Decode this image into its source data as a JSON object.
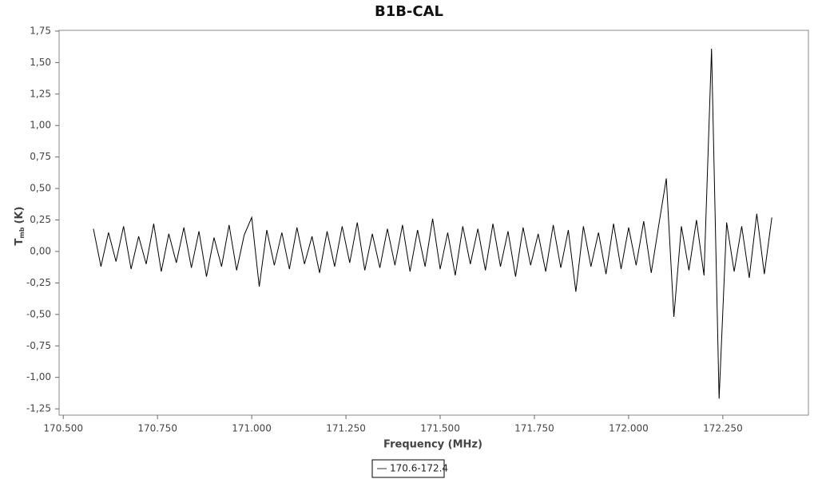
{
  "chart_data": {
    "type": "line",
    "title": "B1B-CAL",
    "x_label": "Frequency (MHz)",
    "y_label": "T",
    "y_label_sub": "mb",
    "y_label_unit": "(K)",
    "x": [
      170.58,
      170.6,
      170.62,
      170.64,
      170.66,
      170.68,
      170.7,
      170.72,
      170.74,
      170.76,
      170.78,
      170.8,
      170.82,
      170.84,
      170.86,
      170.88,
      170.9,
      170.92,
      170.94,
      170.96,
      170.98,
      171.0,
      171.02,
      171.04,
      171.06,
      171.08,
      171.1,
      171.12,
      171.14,
      171.16,
      171.18,
      171.2,
      171.22,
      171.24,
      171.26,
      171.28,
      171.3,
      171.32,
      171.34,
      171.36,
      171.38,
      171.4,
      171.42,
      171.44,
      171.46,
      171.48,
      171.5,
      171.52,
      171.54,
      171.56,
      171.58,
      171.6,
      171.62,
      171.64,
      171.66,
      171.68,
      171.7,
      171.72,
      171.74,
      171.76,
      171.78,
      171.8,
      171.82,
      171.84,
      171.86,
      171.88,
      171.9,
      171.92,
      171.94,
      171.96,
      171.98,
      172.0,
      172.02,
      172.04,
      172.06,
      172.08,
      172.1,
      172.12,
      172.14,
      172.16,
      172.18,
      172.2,
      172.22,
      172.24,
      172.26,
      172.28,
      172.3,
      172.32,
      172.34,
      172.36,
      172.38
    ],
    "series": [
      {
        "name": "170.6-172.4",
        "color": "#000000",
        "values": [
          0.18,
          -0.12,
          0.15,
          -0.08,
          0.2,
          -0.14,
          0.12,
          -0.1,
          0.22,
          -0.16,
          0.14,
          -0.09,
          0.19,
          -0.13,
          0.16,
          -0.2,
          0.11,
          -0.12,
          0.21,
          -0.15,
          0.13,
          0.27,
          -0.28,
          0.17,
          -0.11,
          0.15,
          -0.14,
          0.19,
          -0.1,
          0.12,
          -0.17,
          0.16,
          -0.12,
          0.2,
          -0.09,
          0.23,
          -0.15,
          0.14,
          -0.13,
          0.18,
          -0.11,
          0.21,
          -0.16,
          0.17,
          -0.12,
          0.26,
          -0.14,
          0.15,
          -0.19,
          0.2,
          -0.1,
          0.18,
          -0.15,
          0.22,
          -0.12,
          0.16,
          -0.2,
          0.19,
          -0.11,
          0.14,
          -0.16,
          0.21,
          -0.13,
          0.17,
          -0.32,
          0.2,
          -0.12,
          0.15,
          -0.18,
          0.22,
          -0.14,
          0.19,
          -0.11,
          0.24,
          -0.17,
          0.21,
          0.58,
          -0.52,
          0.2,
          -0.15,
          0.25,
          -0.19,
          1.61,
          -1.17,
          0.23,
          -0.16,
          0.2,
          -0.21,
          0.3,
          -0.18,
          0.27
        ]
      }
    ],
    "xlim": [
      170.489,
      172.477
    ],
    "ylim": [
      -1.3,
      1.756
    ],
    "xticks": [
      {
        "value": 170.5,
        "label": "170.500"
      },
      {
        "value": 170.75,
        "label": "170.750"
      },
      {
        "value": 171.0,
        "label": "171.000"
      },
      {
        "value": 171.25,
        "label": "171.250"
      },
      {
        "value": 171.5,
        "label": "171.500"
      },
      {
        "value": 171.75,
        "label": "171.750"
      },
      {
        "value": 172.0,
        "label": "172.000"
      },
      {
        "value": 172.25,
        "label": "172.250"
      }
    ],
    "yticks": [
      {
        "value": -1.25,
        "label": "-1,25"
      },
      {
        "value": -1.0,
        "label": "-1,00"
      },
      {
        "value": -0.75,
        "label": "-0,75"
      },
      {
        "value": -0.5,
        "label": "-0,50"
      },
      {
        "value": -0.25,
        "label": "-0,25"
      },
      {
        "value": 0,
        "label": "0,00"
      },
      {
        "value": 0.25,
        "label": "0,25"
      },
      {
        "value": 0.5,
        "label": "0,50"
      },
      {
        "value": 0.75,
        "label": "0,75"
      },
      {
        "value": 1.0,
        "label": "1,00"
      },
      {
        "value": 1.25,
        "label": "1,25"
      },
      {
        "value": 1.5,
        "label": "1,50"
      },
      {
        "value": 1.75,
        "label": "1,75"
      }
    ],
    "grid": false,
    "legend": "bottom"
  }
}
